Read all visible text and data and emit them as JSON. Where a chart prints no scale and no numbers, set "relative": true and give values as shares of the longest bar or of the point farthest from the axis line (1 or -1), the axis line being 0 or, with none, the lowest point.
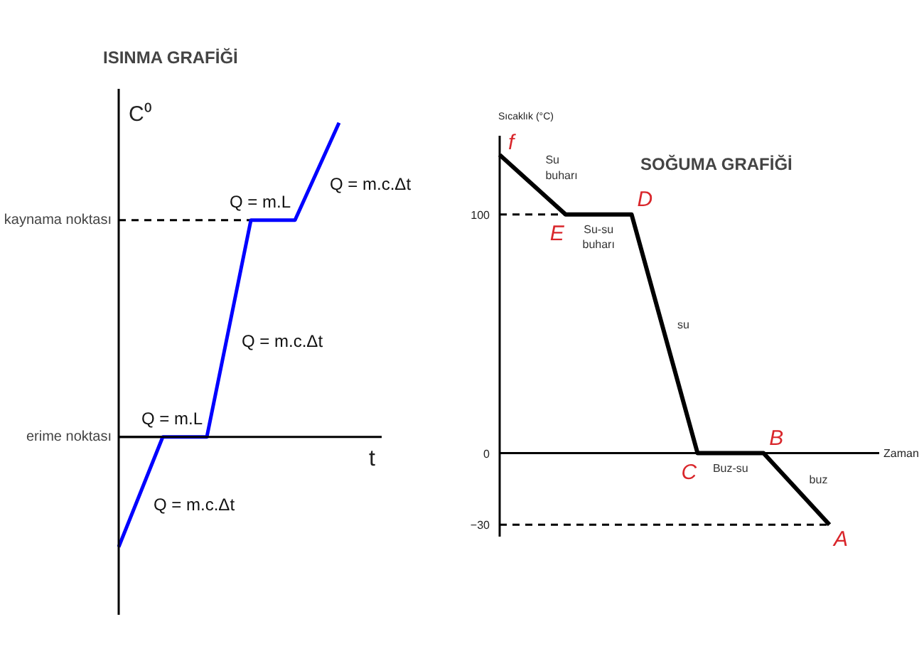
{
  "chart_data": [
    {
      "type": "line",
      "title": "ISINMA GRAFİĞİ",
      "xlabel": "t",
      "ylabel": "C⁰",
      "relative": true,
      "categories": [
        null,
        null,
        null,
        null,
        null,
        null
      ],
      "series": [
        {
          "color": "#0000ff",
          "values": [
            -0.35,
            0,
            0,
            0.69,
            0.69,
            1
          ]
        }
      ],
      "ref_lines": [
        {
          "axis": "y",
          "value": 0.69,
          "label": "kaynama noktası",
          "line_style": "dashed",
          "color": "#000000"
        },
        {
          "axis": "y",
          "value": 0,
          "label": "erime noktası",
          "line_style": "solid",
          "color": "#000000"
        }
      ],
      "annotations": [
        "Q = m.c.Δt",
        "Q = m.L",
        "Q = m.c.Δt",
        "Q = m.L",
        "Q = m.c.Δt"
      ]
    },
    {
      "type": "line",
      "title": "SOĞUMA GRAFİĞİ",
      "xlabel": "Zaman",
      "ylabel": "Sıcaklık (°C)",
      "categories": [
        null,
        null,
        null,
        null,
        null,
        null
      ],
      "series": [
        {
          "color": "#000000",
          "values": [
            125,
            100,
            100,
            0,
            0,
            -30
          ],
          "value_labels": [
            "f",
            "E",
            "D",
            "C",
            "B",
            "A"
          ]
        }
      ],
      "ylim": [
        -35,
        133
      ],
      "yticks": [
        -30,
        0,
        100
      ],
      "ref_lines": [
        {
          "axis": "y",
          "value": 100,
          "line_style": "dashed",
          "color": "#000000"
        },
        {
          "axis": "y",
          "value": -30,
          "line_style": "dashed",
          "color": "#000000"
        }
      ],
      "annotations": [
        "Su\nbuharı",
        "Su-su\nbuharı",
        "su",
        "Buz-su",
        "buz"
      ]
    }
  ]
}
